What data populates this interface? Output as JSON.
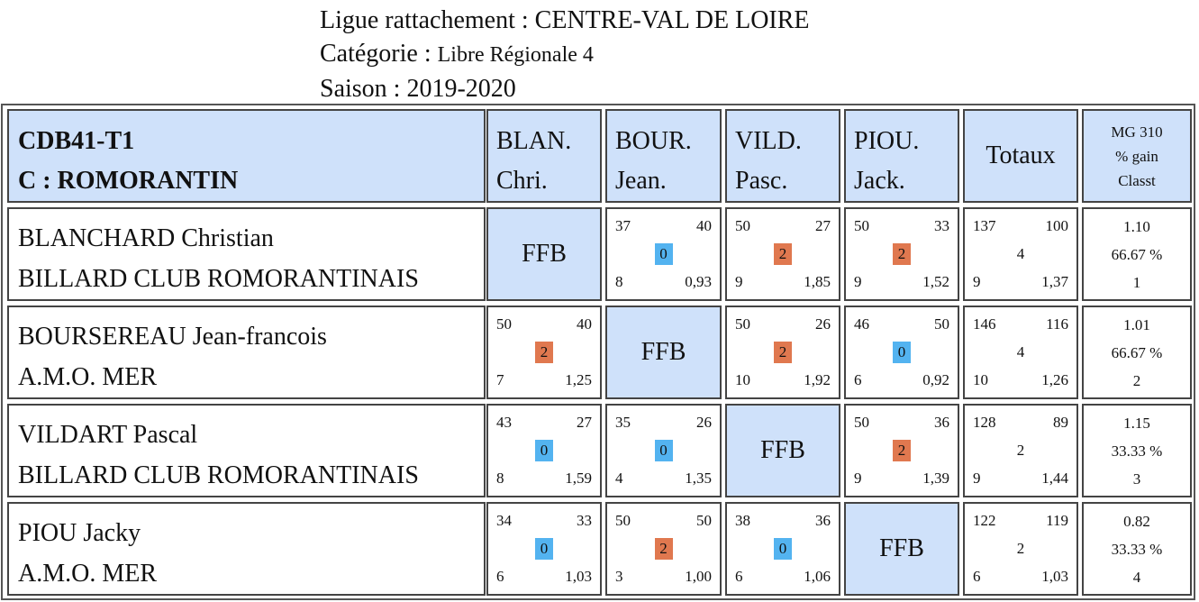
{
  "header": {
    "ligue_label": "Ligue rattachement : ",
    "ligue_value": "CENTRE-VAL DE LOIRE",
    "categorie_label": "Catégorie : ",
    "categorie_value": "Libre Régionale 4",
    "saison_label": "Saison : ",
    "saison_value": "2019-2020"
  },
  "table": {
    "team_code": "CDB41-T1",
    "team_club": "C : ROMORANTIN",
    "columns": [
      {
        "abbr": "BLAN.",
        "first": "Chri."
      },
      {
        "abbr": "BOUR.",
        "first": "Jean."
      },
      {
        "abbr": "VILD.",
        "first": "Pasc."
      },
      {
        "abbr": "PIOU.",
        "first": "Jack."
      }
    ],
    "totaux_label": "Totaux",
    "mg_label": "MG 310",
    "gain_label": "% gain",
    "classt_label": "Classt",
    "ffb_label": "FFB",
    "rows": [
      {
        "name": "BLANCHARD Christian",
        "club": "BILLARD CLUB ROMORANTINAIS",
        "matches": [
          null,
          {
            "tl": "37",
            "tr": "40",
            "pts": "0",
            "bl": "8",
            "br": "0,93"
          },
          {
            "tl": "50",
            "tr": "27",
            "pts": "2",
            "bl": "9",
            "br": "1,85"
          },
          {
            "tl": "50",
            "tr": "33",
            "pts": "2",
            "bl": "9",
            "br": "1,52"
          }
        ],
        "totals": {
          "tl": "137",
          "tr": "100",
          "mid": "4",
          "bl": "9",
          "br": "1,37"
        },
        "stats": {
          "mg": "1.10",
          "gain": "66.67 %",
          "classt": "1"
        }
      },
      {
        "name": "BOURSEREAU Jean-francois",
        "club": "A.M.O. MER",
        "matches": [
          {
            "tl": "50",
            "tr": "40",
            "pts": "2",
            "bl": "7",
            "br": "1,25"
          },
          null,
          {
            "tl": "50",
            "tr": "26",
            "pts": "2",
            "bl": "10",
            "br": "1,92"
          },
          {
            "tl": "46",
            "tr": "50",
            "pts": "0",
            "bl": "6",
            "br": "0,92"
          }
        ],
        "totals": {
          "tl": "146",
          "tr": "116",
          "mid": "4",
          "bl": "10",
          "br": "1,26"
        },
        "stats": {
          "mg": "1.01",
          "gain": "66.67 %",
          "classt": "2"
        }
      },
      {
        "name": "VILDART Pascal",
        "club": "BILLARD CLUB ROMORANTINAIS",
        "matches": [
          {
            "tl": "43",
            "tr": "27",
            "pts": "0",
            "bl": "8",
            "br": "1,59"
          },
          {
            "tl": "35",
            "tr": "26",
            "pts": "0",
            "bl": "4",
            "br": "1,35"
          },
          null,
          {
            "tl": "50",
            "tr": "36",
            "pts": "2",
            "bl": "9",
            "br": "1,39"
          }
        ],
        "totals": {
          "tl": "128",
          "tr": "89",
          "mid": "2",
          "bl": "9",
          "br": "1,44"
        },
        "stats": {
          "mg": "1.15",
          "gain": "33.33 %",
          "classt": "3"
        }
      },
      {
        "name": "PIOU Jacky",
        "club": "A.M.O. MER",
        "matches": [
          {
            "tl": "34",
            "tr": "33",
            "pts": "0",
            "bl": "6",
            "br": "1,03"
          },
          {
            "tl": "50",
            "tr": "50",
            "pts": "2",
            "bl": "3",
            "br": "1,00"
          },
          {
            "tl": "38",
            "tr": "36",
            "pts": "0",
            "bl": "6",
            "br": "1,06"
          },
          null
        ],
        "totals": {
          "tl": "122",
          "tr": "119",
          "mid": "2",
          "bl": "6",
          "br": "1,03"
        },
        "stats": {
          "mg": "0.82",
          "gain": "33.33 %",
          "classt": "4"
        }
      }
    ]
  },
  "colors": {
    "header_bg": "#cfe1fa",
    "win_badge": "#e0784f",
    "loss_badge": "#53b3f0"
  }
}
